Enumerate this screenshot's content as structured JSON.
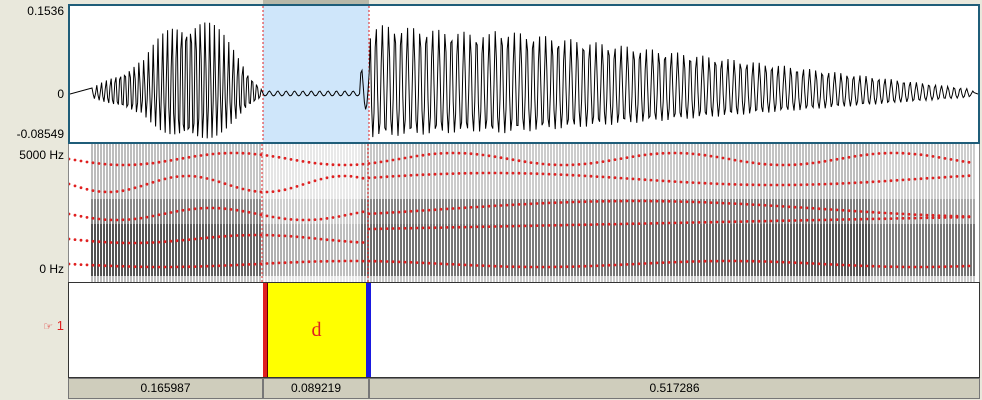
{
  "waveform": {
    "amp_max_label": "0.1536",
    "amp_zero_label": "0",
    "amp_min_label": "-0.08549"
  },
  "spectrogram": {
    "freq_max_label": "5000 Hz",
    "freq_min_label": "0 Hz"
  },
  "selection": {
    "start_s": 0.165987,
    "end_s": 0.255206
  },
  "tier": {
    "name": "1",
    "icon": "pointing-hand-icon",
    "interval_label": "d",
    "interval_color": "#ffff00",
    "left_boundary_color": "#e02020",
    "right_boundary_color": "#1a1ae0"
  },
  "durations": [
    "0.165987",
    "0.089219",
    "0.517286"
  ],
  "colors": {
    "selection": "#cfe6fa",
    "formant_dots": "#e02020",
    "frame": "#1f5d79"
  }
}
